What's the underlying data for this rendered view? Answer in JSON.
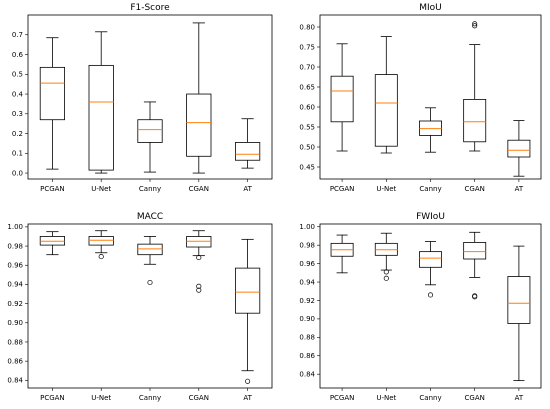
{
  "chart_data": [
    {
      "type": "box",
      "title": "F1-Score",
      "categories": [
        "PCGAN",
        "U-Net",
        "Canny",
        "CGAN",
        "AT"
      ],
      "ylim": [
        -0.03,
        0.8
      ],
      "yticks": [
        0.0,
        0.1,
        0.2,
        0.3,
        0.4,
        0.5,
        0.6,
        0.7
      ],
      "ytick_labels": [
        "0.0",
        "0.1",
        "0.2",
        "0.3",
        "0.4",
        "0.5",
        "0.6",
        "0.7"
      ],
      "boxes": [
        {
          "whislo": 0.02,
          "q1": 0.27,
          "med": 0.455,
          "q3": 0.535,
          "whishi": 0.685,
          "fliers": []
        },
        {
          "whislo": 0.0,
          "q1": 0.015,
          "med": 0.36,
          "q3": 0.545,
          "whishi": 0.715,
          "fliers": []
        },
        {
          "whislo": 0.005,
          "q1": 0.155,
          "med": 0.22,
          "q3": 0.27,
          "whishi": 0.36,
          "fliers": []
        },
        {
          "whislo": 0.0,
          "q1": 0.085,
          "med": 0.255,
          "q3": 0.4,
          "whishi": 0.76,
          "fliers": []
        },
        {
          "whislo": 0.025,
          "q1": 0.065,
          "med": 0.095,
          "q3": 0.155,
          "whishi": 0.275,
          "fliers": []
        }
      ]
    },
    {
      "type": "box",
      "title": "MIoU",
      "categories": [
        "PCGAN",
        "U-Net",
        "Canny",
        "CGAN",
        "AT"
      ],
      "ylim": [
        0.42,
        0.83
      ],
      "yticks": [
        0.45,
        0.5,
        0.55,
        0.6,
        0.65,
        0.7,
        0.75,
        0.8
      ],
      "ytick_labels": [
        "0.45",
        "0.50",
        "0.55",
        "0.60",
        "0.65",
        "0.70",
        "0.75",
        "0.80"
      ],
      "boxes": [
        {
          "whislo": 0.49,
          "q1": 0.563,
          "med": 0.64,
          "q3": 0.677,
          "whishi": 0.758,
          "fliers": []
        },
        {
          "whislo": 0.485,
          "q1": 0.502,
          "med": 0.61,
          "q3": 0.681,
          "whishi": 0.776,
          "fliers": []
        },
        {
          "whislo": 0.487,
          "q1": 0.529,
          "med": 0.546,
          "q3": 0.565,
          "whishi": 0.598,
          "fliers": []
        },
        {
          "whislo": 0.49,
          "q1": 0.513,
          "med": 0.563,
          "q3": 0.619,
          "whishi": 0.756,
          "fliers": [
            0.803,
            0.808
          ]
        },
        {
          "whislo": 0.427,
          "q1": 0.475,
          "med": 0.492,
          "q3": 0.517,
          "whishi": 0.566,
          "fliers": []
        }
      ]
    },
    {
      "type": "box",
      "title": "MACC",
      "categories": [
        "PCGAN",
        "U-Net",
        "Canny",
        "CGAN",
        "AT"
      ],
      "ylim": [
        0.832,
        1.003
      ],
      "yticks": [
        0.84,
        0.86,
        0.88,
        0.9,
        0.92,
        0.94,
        0.96,
        0.98,
        1.0
      ],
      "ytick_labels": [
        "0.84",
        "0.86",
        "0.88",
        "0.90",
        "0.92",
        "0.94",
        "0.96",
        "0.98",
        "1.00"
      ],
      "boxes": [
        {
          "whislo": 0.971,
          "q1": 0.981,
          "med": 0.985,
          "q3": 0.99,
          "whishi": 0.995,
          "fliers": []
        },
        {
          "whislo": 0.973,
          "q1": 0.981,
          "med": 0.986,
          "q3": 0.99,
          "whishi": 0.996,
          "fliers": [
            0.969
          ]
        },
        {
          "whislo": 0.961,
          "q1": 0.971,
          "med": 0.977,
          "q3": 0.982,
          "whishi": 0.99,
          "fliers": [
            0.942
          ]
        },
        {
          "whislo": 0.97,
          "q1": 0.979,
          "med": 0.985,
          "q3": 0.99,
          "whishi": 0.996,
          "fliers": [
            0.968,
            0.938,
            0.934
          ]
        },
        {
          "whislo": 0.85,
          "q1": 0.91,
          "med": 0.932,
          "q3": 0.957,
          "whishi": 0.987,
          "fliers": [
            0.839
          ]
        }
      ]
    },
    {
      "type": "box",
      "title": "FWIoU",
      "categories": [
        "PCGAN",
        "U-Net",
        "Canny",
        "CGAN",
        "AT"
      ],
      "ylim": [
        0.825,
        1.003
      ],
      "yticks": [
        0.84,
        0.86,
        0.88,
        0.9,
        0.92,
        0.94,
        0.96,
        0.98,
        1.0
      ],
      "ytick_labels": [
        "0.84",
        "0.86",
        "0.88",
        "0.90",
        "0.92",
        "0.94",
        "0.96",
        "0.98",
        "1.00"
      ],
      "boxes": [
        {
          "whislo": 0.95,
          "q1": 0.968,
          "med": 0.975,
          "q3": 0.982,
          "whishi": 0.991,
          "fliers": []
        },
        {
          "whislo": 0.953,
          "q1": 0.969,
          "med": 0.975,
          "q3": 0.982,
          "whishi": 0.993,
          "fliers": [
            0.951,
            0.944
          ]
        },
        {
          "whislo": 0.937,
          "q1": 0.956,
          "med": 0.966,
          "q3": 0.973,
          "whishi": 0.984,
          "fliers": [
            0.926
          ]
        },
        {
          "whislo": 0.945,
          "q1": 0.965,
          "med": 0.973,
          "q3": 0.983,
          "whishi": 0.994,
          "fliers": [
            0.925,
            0.924
          ]
        },
        {
          "whislo": 0.833,
          "q1": 0.895,
          "med": 0.917,
          "q3": 0.946,
          "whishi": 0.979,
          "fliers": []
        }
      ]
    }
  ],
  "colors": {
    "box": "#000000",
    "median": "#ff7f0e",
    "flier": "#000000"
  }
}
